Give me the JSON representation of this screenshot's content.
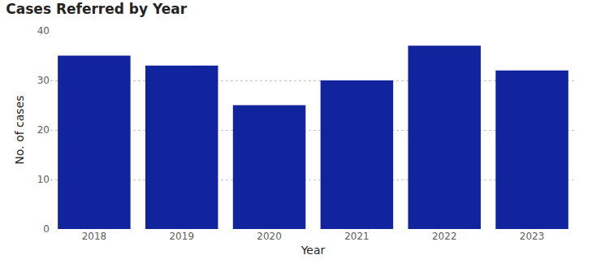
{
  "chart_data": {
    "type": "bar",
    "title": "Cases Referred by Year",
    "x_label": "Year",
    "y_label": "No. of cases",
    "categories": [
      "2018",
      "2019",
      "2020",
      "2021",
      "2022",
      "2023"
    ],
    "values": [
      35,
      33,
      25,
      30,
      37,
      32
    ],
    "color": "#12239e",
    "ylim": [
      0,
      40
    ],
    "yticks": [
      0,
      10,
      20,
      30,
      40
    ],
    "grid": true
  }
}
